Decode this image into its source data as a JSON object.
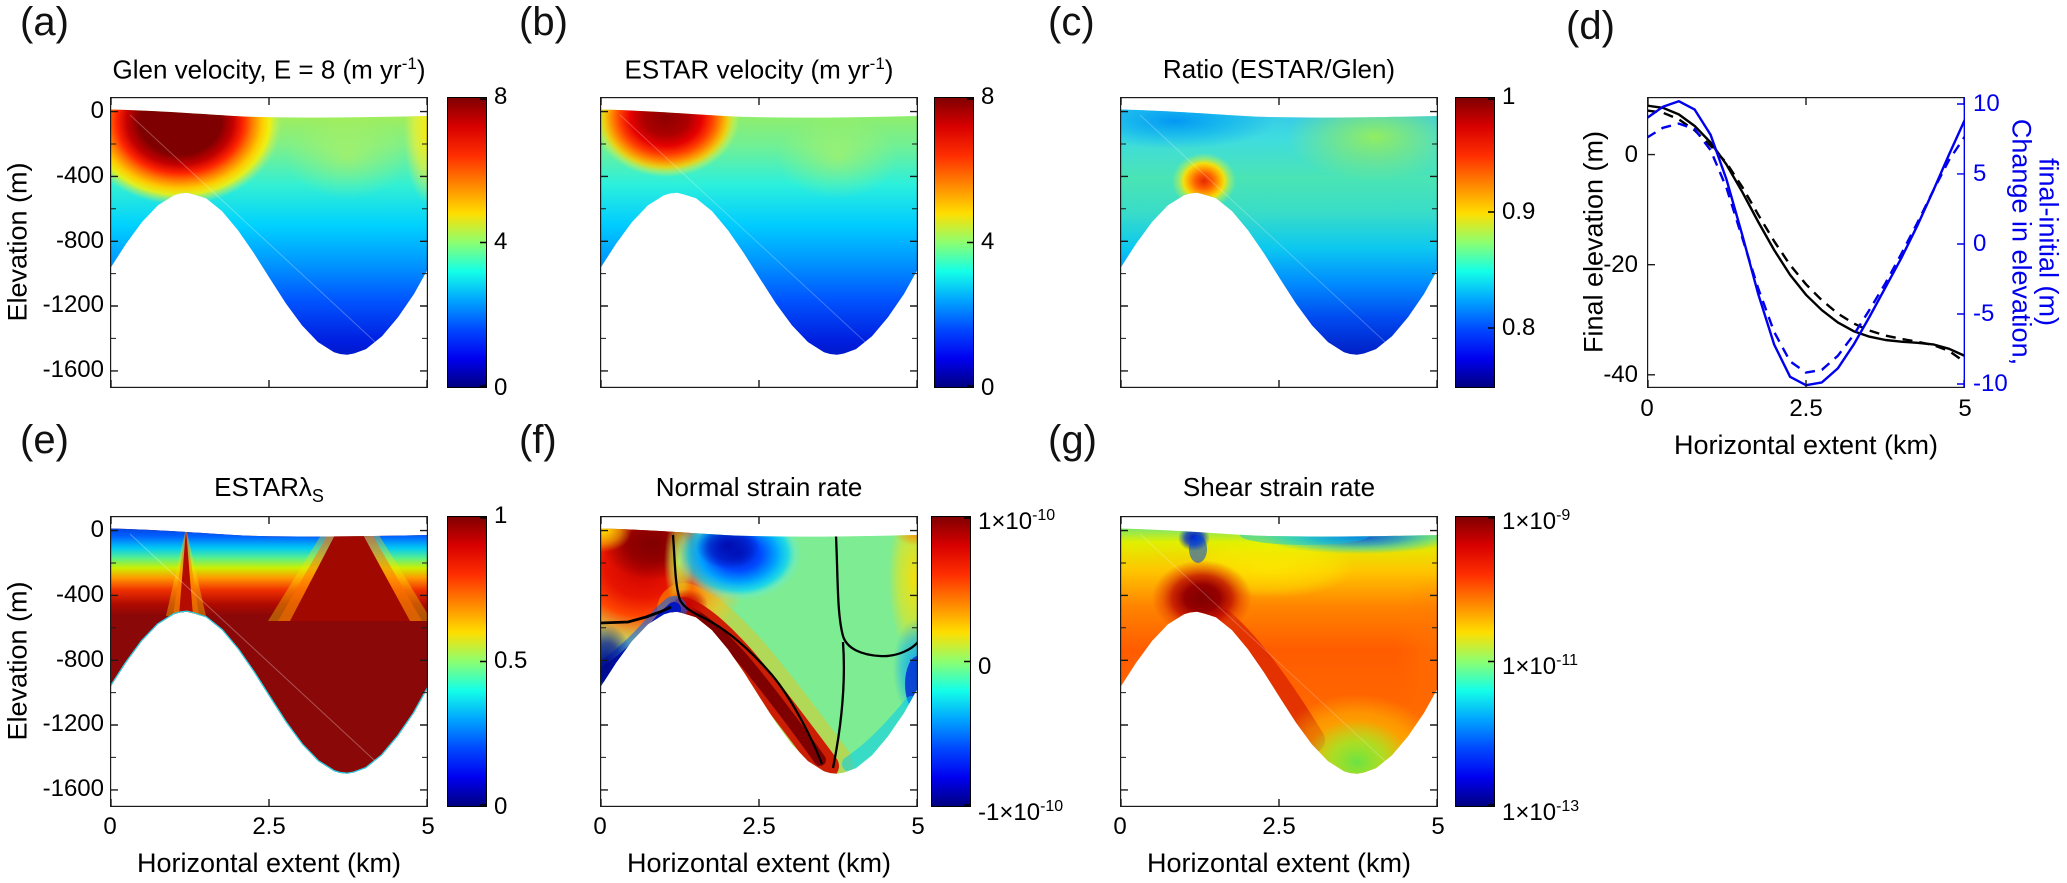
{
  "figure": {
    "background": "#ffffff",
    "accent_blue": "#0000ee",
    "axis_color": "#1a1a1a",
    "colormap": "jet"
  },
  "shared": {
    "xlabel": "Horizontal extent (km)",
    "ylabel": "Elevation (m)",
    "x_ticks": [
      "0",
      "2.5",
      "5"
    ],
    "y_ticks": [
      "0",
      "-400",
      "-800",
      "-1200",
      "-1600"
    ]
  },
  "panels": {
    "a": {
      "letter": "(a)",
      "title_pre": "Glen velocity, E = 8 (m yr",
      "title_sup": "-1",
      "title_post": ")",
      "cb_ticks": [
        "8",
        "4",
        "0"
      ]
    },
    "b": {
      "letter": "(b)",
      "title_pre": "ESTAR velocity (m yr",
      "title_sup": "-1",
      "title_post": ")",
      "cb_ticks": [
        "8",
        "4",
        "0"
      ]
    },
    "c": {
      "letter": "(c)",
      "title": "Ratio (ESTAR/Glen)",
      "cb_ticks": [
        "1",
        "0.9",
        "0.8"
      ]
    },
    "d": {
      "letter": "(d)",
      "ylabel_left": "Final elevation (m)",
      "ylabel_right_line1": "Change in elevation,",
      "ylabel_right_line2": "final-initial (m)",
      "xlabel": "Horizontal extent (km)",
      "y_left_ticks": [
        "0",
        "-20",
        "-40"
      ],
      "y_right_ticks": [
        "10",
        "5",
        "0",
        "-5",
        "-10"
      ],
      "x_ticks": [
        "0",
        "2.5",
        "5"
      ]
    },
    "e": {
      "letter": "(e)",
      "title_pre": "ESTAR",
      "title_lambda": "λ",
      "title_sub": "S",
      "cb_ticks": [
        "1",
        "0.5",
        "0"
      ]
    },
    "f": {
      "letter": "(f)",
      "title": "Normal strain rate",
      "cb_sci": [
        {
          "m": "1×10",
          "e": "-10"
        },
        {
          "m": "0",
          "e": ""
        },
        {
          "m": "-1×10",
          "e": "-10"
        }
      ]
    },
    "g": {
      "letter": "(g)",
      "title": "Shear strain rate",
      "cb_sci": [
        {
          "m": "1×10",
          "e": "-9"
        },
        {
          "m": "1×10",
          "e": "-11"
        },
        {
          "m": "1×10",
          "e": "-13"
        }
      ]
    }
  },
  "chart_data": [
    {
      "panel": "a",
      "type": "filled_contour",
      "title": "Glen velocity, E = 8 (m yr^-1)",
      "xlabel": "Horizontal extent (km)",
      "ylabel": "Elevation (m)",
      "xlim_km": [
        0,
        5
      ],
      "ylim_m": [
        -1700,
        90
      ],
      "colorbar": {
        "min": 0,
        "max": 8,
        "tick_labels": [
          "8",
          "4",
          "0"
        ]
      },
      "geometry": "ice slab, surface near 0 m; sinusoidal bed: crest ≈ -500 m at x ≈ 1.2 km, trough ≈ -1500 m at x ≈ 3.7 km",
      "field": "velocity max ≈ 8 near surface at x ≈ 0.4-1.7 km; ≈ 4.5-5 in upper right; decreases to ≈ 0 at bed"
    },
    {
      "panel": "b",
      "type": "filled_contour",
      "title": "ESTAR velocity (m yr^-1)",
      "xlim_km": [
        0,
        5
      ],
      "ylim_m": [
        -1700,
        90
      ],
      "colorbar": {
        "min": 0,
        "max": 8,
        "tick_labels": [
          "8",
          "4",
          "0"
        ]
      },
      "field": "same pattern as (a) but fast core smaller, max ≈ 7.5 near surface at x ≈ 1 km"
    },
    {
      "panel": "c",
      "type": "filled_contour",
      "title": "Ratio (ESTAR/Glen)",
      "xlim_km": [
        0,
        5
      ],
      "ylim_m": [
        -1700,
        90
      ],
      "colorbar": {
        "min": 0.75,
        "max": 1,
        "tick_labels": [
          "1",
          "0.9",
          "0.8"
        ]
      },
      "field": "≈ 0.83-0.86 near surface left, ≈ 0.88 upper right, hotspot ≈ 0.97 above bed crest at x ≈ 1.3 km, ≈ 0.76-0.8 near bed in trough"
    },
    {
      "panel": "d",
      "type": "line",
      "title": "",
      "xlabel": "Horizontal extent (km)",
      "ylabel_left": "Final elevation (m)",
      "ylabel_right": "Change in elevation, final-initial (m)",
      "x": [
        0,
        0.25,
        0.5,
        0.75,
        1,
        1.25,
        1.5,
        1.75,
        2,
        2.25,
        2.5,
        2.75,
        3,
        3.25,
        3.5,
        3.75,
        4,
        4.25,
        4.5,
        4.75,
        5
      ],
      "xlim": [
        0,
        5
      ],
      "ylim_left": [
        -42.3,
        10.45
      ],
      "ylim_right": [
        -10.3,
        10.5
      ],
      "x_tick_values": [
        0,
        2.5,
        5
      ],
      "y_left_tick_values": [
        0,
        -20,
        -40
      ],
      "y_right_tick_values": [
        10,
        5,
        0,
        -5,
        -10
      ],
      "series": [
        {
          "name": "final-elevation-solid-black",
          "axis": "left",
          "style": "solid",
          "color": "#000000",
          "values": [
            8.9,
            8.5,
            7.3,
            5.2,
            2.2,
            -1.8,
            -6.8,
            -12.2,
            -17.3,
            -21.8,
            -25.4,
            -28.2,
            -30.4,
            -32.0,
            -33.0,
            -33.6,
            -33.9,
            -34.1,
            -34.4,
            -35.2,
            -36.5
          ]
        },
        {
          "name": "final-elevation-dashed-black",
          "axis": "left",
          "style": "dashed",
          "color": "#000000",
          "values": [
            8.0,
            7.6,
            6.4,
            4.4,
            1.6,
            -1.5,
            -5.9,
            -10.9,
            -15.7,
            -20.0,
            -23.5,
            -26.4,
            -28.8,
            -30.6,
            -31.9,
            -32.8,
            -33.4,
            -33.9,
            -34.5,
            -35.6,
            -37.6
          ]
        },
        {
          "name": "elevation-change-solid-blue",
          "axis": "right",
          "style": "solid",
          "color": "#0000ee",
          "values": [
            9.0,
            9.8,
            10.2,
            9.6,
            7.8,
            4.6,
            0.6,
            -3.6,
            -7.2,
            -9.5,
            -10.1,
            -9.9,
            -8.9,
            -7.2,
            -5.2,
            -3.1,
            -1.0,
            1.3,
            3.8,
            6.4,
            8.9
          ]
        },
        {
          "name": "elevation-change-dashed-blue",
          "axis": "right",
          "style": "dashed",
          "color": "#0000ee",
          "values": [
            7.6,
            8.3,
            8.6,
            8.2,
            6.7,
            4.0,
            0.4,
            -3.2,
            -6.3,
            -8.4,
            -9.2,
            -9.0,
            -8.0,
            -6.5,
            -4.7,
            -2.8,
            -0.7,
            1.5,
            3.8,
            6.0,
            7.7
          ]
        }
      ]
    },
    {
      "panel": "e",
      "type": "filled_contour",
      "title": "ESTAR λ_S",
      "xlim_km": [
        0,
        5
      ],
      "ylim_m": [
        -1700,
        90
      ],
      "colorbar": {
        "min": 0,
        "max": 1,
        "tick_labels": [
          "1",
          "0.5",
          "0"
        ]
      },
      "field": "λ_S ≈ 1 (dark red) through most of ice body; ≈ 0 (blue) thin surface layer; red reaches surface in narrow spike at x ≈ 1.2 km and broad wedge at x ≈ 3.4-4 km; thin cyan layer along bed"
    },
    {
      "panel": "f",
      "type": "filled_contour",
      "title": "Normal strain rate",
      "xlim_km": [
        0,
        5
      ],
      "ylim_m": [
        -1700,
        90
      ],
      "colorbar": {
        "min": -1e-10,
        "max": 1e-10,
        "tick_labels": [
          "1×10^-10",
          "0",
          "-1×10^-10"
        ]
      },
      "field": "positive (red) upper left and along bed downslope of crest; negative (blue) at surface x ≈ 1.5-2.8 km, along bed upslope of crest and at right edge mid-depth; near zero (green) centre right; black zero contours at x ≈ 1.2 km, x ≈ 3.6 km and along bump flank"
    },
    {
      "panel": "g",
      "type": "filled_contour",
      "title": "Shear strain rate",
      "xlim_km": [
        0,
        5
      ],
      "ylim_m": [
        -1700,
        90
      ],
      "colorbar_log": {
        "min": 1e-13,
        "max": 1e-09,
        "tick_labels": [
          "1×10^-9",
          "1×10^-11",
          "1×10^-13"
        ]
      },
      "field": "≈ 10^-13 (blue) at free surface, ≈ 10^-10 (orange/red) in body, maximum ≈ 10^-9 (dark red) above bed crest, ≈ 10^-11 (green) at trough bottom"
    }
  ]
}
